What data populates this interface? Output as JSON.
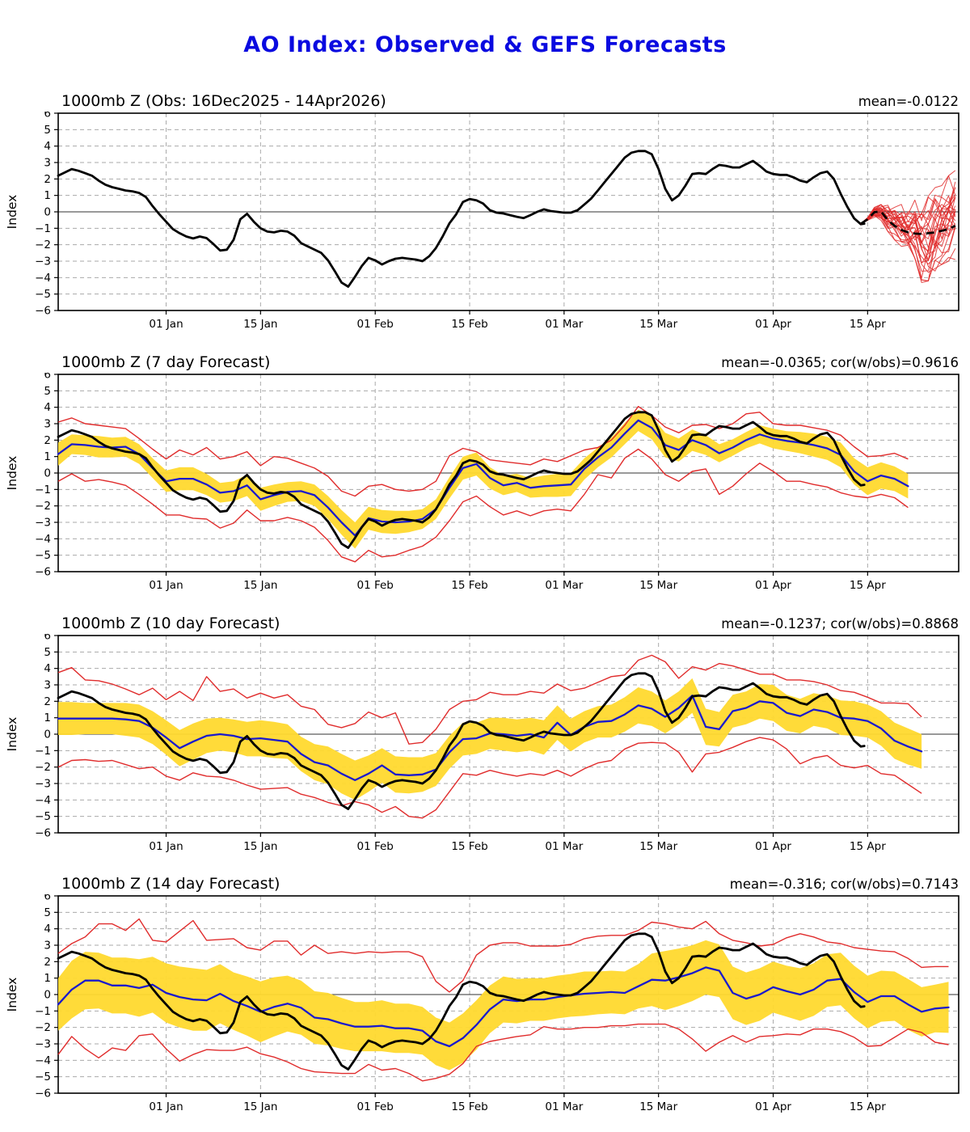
{
  "page": {
    "title": "AO Index: Observed & GEFS Forecasts"
  },
  "chart_data": {
    "type": "line",
    "title": "AO Index: Observed & GEFS Forecasts",
    "axis": {
      "ylabel": "Index",
      "y_range": [
        -6,
        6
      ],
      "x_range": [
        0,
        133.5
      ],
      "grid": "dashed horizontal at each integer, dashed vertical at date ticks, solid line at 0",
      "y_tick_labels": [
        "6",
        "5",
        "4",
        "3",
        "2",
        "1",
        "0",
        "−1",
        "−2",
        "−3",
        "−4",
        "−5",
        "−6"
      ],
      "x_ticks": [
        {
          "day": 16,
          "label": "01 Jan"
        },
        {
          "day": 30,
          "label": "15 Jan"
        },
        {
          "day": 47,
          "label": "01 Feb"
        },
        {
          "day": 61,
          "label": "15 Feb"
        },
        {
          "day": 75,
          "label": "01 Mar"
        },
        {
          "day": 89,
          "label": "15 Mar"
        },
        {
          "day": 106,
          "label": "01 Apr"
        },
        {
          "day": 120,
          "label": "15 Apr"
        }
      ],
      "x_day0": "16 Dec 2025 (day 0 of axis)"
    },
    "observed": {
      "description": "Black observed AO index curve, identical in all four panels, 16Dec2025-14Apr2026",
      "start_day": 0,
      "step": 1,
      "values": [
        2.2,
        2.4,
        2.6,
        2.5,
        2.35,
        2.2,
        1.9,
        1.65,
        1.5,
        1.4,
        1.3,
        1.25,
        1.15,
        0.9,
        0.35,
        -0.15,
        -0.6,
        -1.05,
        -1.3,
        -1.5,
        -1.62,
        -1.5,
        -1.6,
        -1.95,
        -2.35,
        -2.3,
        -1.7,
        -0.45,
        -0.12,
        -0.6,
        -1.0,
        -1.2,
        -1.25,
        -1.15,
        -1.2,
        -1.45,
        -1.9,
        -2.1,
        -2.3,
        -2.5,
        -2.95,
        -3.6,
        -4.3,
        -4.55,
        -3.95,
        -3.3,
        -2.8,
        -2.95,
        -3.2,
        -3.0,
        -2.85,
        -2.8,
        -2.85,
        -2.9,
        -3.0,
        -2.7,
        -2.2,
        -1.5,
        -0.7,
        -0.15,
        0.6,
        0.78,
        0.7,
        0.5,
        0.1,
        -0.05,
        -0.1,
        -0.2,
        -0.3,
        -0.38,
        -0.2,
        0.0,
        0.15,
        0.05,
        0.0,
        -0.05,
        -0.05,
        0.1,
        0.45,
        0.8,
        1.3,
        1.8,
        2.3,
        2.8,
        3.3,
        3.6,
        3.7,
        3.7,
        3.5,
        2.6,
        1.4,
        0.7,
        1.0,
        1.6,
        2.3,
        2.35,
        2.3,
        2.6,
        2.85,
        2.8,
        2.7,
        2.7,
        2.9,
        3.1,
        2.8,
        2.45,
        2.3,
        2.25,
        2.25,
        2.1,
        1.9,
        1.8,
        2.1,
        2.35,
        2.45,
        2.0,
        1.1,
        0.3,
        -0.4,
        -0.75
      ],
      "tail_day": 119.5,
      "tail_value": -0.72
    },
    "panels": [
      {
        "id": "observed",
        "title": "1000mb Z (Obs: 16Dec2025 - 14Apr2026)",
        "stats": "mean=-0.0122",
        "kind": "ensemble",
        "ensemble": {
          "note": "~26 red GEFS member traces fanning out after the observed curve ends; black dashed ensemble mean",
          "members": 26,
          "start_day": 119,
          "step": 1,
          "envelope_lo": [
            -0.78,
            -0.62,
            -0.4,
            -0.55,
            -1.2,
            -1.7,
            -2.1,
            -2.5,
            -2.9,
            -4.3,
            -4.2,
            -3.6,
            -3.2,
            -3.0,
            -2.9
          ],
          "envelope_hi": [
            -0.66,
            -0.28,
            0.3,
            0.45,
            0.5,
            0.55,
            0.6,
            0.7,
            0.9,
            1.1,
            1.4,
            1.5,
            1.6,
            2.2,
            2.6
          ],
          "mean": [
            -0.72,
            -0.45,
            -0.02,
            0.02,
            -0.5,
            -0.85,
            -1.1,
            -1.25,
            -1.32,
            -1.35,
            -1.3,
            -1.25,
            -1.15,
            -1.05,
            -0.85
          ]
        }
      },
      {
        "id": "forecast-7day",
        "title": "1000mb Z (7 day Forecast)",
        "stats": "mean=-0.0365; cor(w/obs)=0.9616",
        "kind": "forecast",
        "forecast": {
          "start_day": 0,
          "step": 2,
          "blue_mean": [
            1.15,
            1.75,
            1.7,
            1.6,
            1.55,
            1.6,
            1.15,
            0.3,
            -0.5,
            -0.35,
            -0.35,
            -0.7,
            -1.2,
            -1.1,
            -0.75,
            -1.6,
            -1.35,
            -1.15,
            -1.1,
            -1.35,
            -2.1,
            -3.0,
            -3.8,
            -2.75,
            -2.95,
            -3.0,
            -2.95,
            -2.8,
            -2.2,
            -0.9,
            0.3,
            0.55,
            -0.3,
            -0.75,
            -0.6,
            -0.9,
            -0.8,
            -0.75,
            -0.7,
            0.25,
            0.95,
            1.55,
            2.4,
            3.2,
            2.75,
            1.7,
            1.4,
            2.0,
            1.7,
            1.2,
            1.55,
            2.0,
            2.35,
            2.1,
            1.95,
            1.85,
            1.7,
            1.5,
            1.1,
            0.1,
            -0.5,
            -0.15,
            -0.35,
            -0.8
          ],
          "band_halfwidth": [
            0.7,
            0.6,
            0.6,
            0.65,
            0.6,
            0.6,
            0.6,
            0.6,
            0.65,
            0.7,
            0.7,
            0.65,
            0.6,
            0.6,
            0.65,
            0.7,
            0.65,
            0.6,
            0.6,
            0.65,
            0.7,
            0.75,
            0.8,
            0.7,
            0.7,
            0.7,
            0.65,
            0.6,
            0.6,
            0.65,
            0.7,
            0.7,
            0.65,
            0.6,
            0.55,
            0.6,
            0.65,
            0.7,
            0.7,
            0.65,
            0.6,
            0.6,
            0.65,
            0.65,
            0.7,
            0.75,
            0.7,
            0.65,
            0.6,
            0.55,
            0.5,
            0.5,
            0.55,
            0.6,
            0.6,
            0.65,
            0.7,
            0.7,
            0.75,
            0.8,
            0.85,
            0.8,
            0.75,
            0.75
          ],
          "red_max": [
            3.1,
            3.35,
            3.0,
            2.9,
            2.8,
            2.7,
            2.1,
            1.45,
            0.85,
            1.4,
            1.1,
            1.55,
            0.85,
            1.0,
            1.3,
            0.45,
            1.0,
            0.9,
            0.6,
            0.3,
            -0.2,
            -1.1,
            -1.4,
            -0.8,
            -0.7,
            -1.0,
            -1.1,
            -1.0,
            -0.5,
            1.05,
            1.5,
            1.3,
            0.8,
            0.7,
            0.6,
            0.5,
            0.85,
            0.7,
            1.05,
            1.4,
            1.55,
            2.0,
            2.9,
            4.05,
            3.5,
            2.8,
            2.45,
            2.9,
            2.95,
            2.7,
            3.0,
            3.6,
            3.7,
            3.0,
            2.9,
            2.9,
            2.75,
            2.6,
            2.3,
            1.6,
            1.0,
            1.05,
            1.2,
            0.85
          ],
          "red_min": [
            -0.5,
            -0.05,
            -0.5,
            -0.4,
            -0.55,
            -0.75,
            -1.3,
            -1.9,
            -2.55,
            -2.55,
            -2.75,
            -2.8,
            -3.35,
            -3.05,
            -2.25,
            -2.9,
            -2.9,
            -2.7,
            -2.9,
            -3.3,
            -4.1,
            -5.1,
            -5.4,
            -4.7,
            -5.1,
            -5.0,
            -4.7,
            -4.45,
            -3.9,
            -2.9,
            -1.75,
            -1.4,
            -2.05,
            -2.55,
            -2.3,
            -2.6,
            -2.3,
            -2.2,
            -2.3,
            -1.3,
            -0.1,
            -0.3,
            0.9,
            1.45,
            0.85,
            -0.1,
            -0.5,
            0.1,
            0.25,
            -1.3,
            -0.8,
            -0.05,
            0.6,
            0.1,
            -0.5,
            -0.5,
            -0.7,
            -0.85,
            -1.2,
            -1.4,
            -1.5,
            -1.3,
            -1.5,
            -2.1
          ]
        }
      },
      {
        "id": "forecast-10day",
        "title": "1000mb Z (10 day Forecast)",
        "stats": "mean=-0.1237; cor(w/obs)=0.8868",
        "kind": "forecast",
        "forecast": {
          "start_day": 0,
          "step": 2,
          "blue_mean": [
            0.95,
            0.95,
            0.95,
            0.95,
            0.95,
            0.9,
            0.8,
            0.4,
            -0.2,
            -0.85,
            -0.45,
            -0.1,
            0.0,
            -0.1,
            -0.3,
            -0.25,
            -0.35,
            -0.45,
            -1.2,
            -1.7,
            -1.9,
            -2.4,
            -2.8,
            -2.4,
            -1.9,
            -2.45,
            -2.5,
            -2.45,
            -2.15,
            -1.1,
            -0.3,
            -0.25,
            0.05,
            0.0,
            -0.1,
            0.0,
            -0.2,
            0.7,
            -0.05,
            0.45,
            0.75,
            0.8,
            1.2,
            1.75,
            1.55,
            1.05,
            1.6,
            2.35,
            0.45,
            0.3,
            1.4,
            1.6,
            2.0,
            1.9,
            1.3,
            1.1,
            1.5,
            1.35,
            1.0,
            0.95,
            0.8,
            0.35,
            -0.4,
            -0.75,
            -1.05
          ],
          "band_halfwidth": [
            1.0,
            1.0,
            0.95,
            0.95,
            0.95,
            1.0,
            1.0,
            1.0,
            1.05,
            1.1,
            1.1,
            1.05,
            1.0,
            1.0,
            1.05,
            1.1,
            1.1,
            1.05,
            1.05,
            1.1,
            1.15,
            1.2,
            1.2,
            1.1,
            1.05,
            1.1,
            1.1,
            1.05,
            1.0,
            1.0,
            1.0,
            0.95,
            0.95,
            1.0,
            1.0,
            1.0,
            1.05,
            1.05,
            1.0,
            0.95,
            0.95,
            1.0,
            1.05,
            1.1,
            1.05,
            1.0,
            1.0,
            1.05,
            1.1,
            1.05,
            1.0,
            1.0,
            1.05,
            1.1,
            1.1,
            1.05,
            1.0,
            1.0,
            1.05,
            1.05,
            1.0,
            1.05,
            1.1,
            1.1,
            1.05
          ],
          "red_max": [
            3.75,
            4.05,
            3.3,
            3.25,
            3.05,
            2.75,
            2.4,
            2.8,
            2.1,
            2.6,
            2.05,
            3.5,
            2.6,
            2.75,
            2.2,
            2.5,
            2.2,
            2.4,
            1.7,
            1.5,
            0.6,
            0.4,
            0.65,
            1.35,
            1.0,
            1.3,
            -0.6,
            -0.5,
            0.3,
            1.5,
            2.0,
            2.1,
            2.55,
            2.4,
            2.4,
            2.6,
            2.5,
            3.05,
            2.65,
            2.8,
            3.15,
            3.5,
            3.6,
            4.5,
            4.8,
            4.4,
            3.4,
            4.1,
            3.9,
            4.3,
            4.15,
            3.9,
            3.65,
            3.65,
            3.3,
            3.3,
            3.2,
            3.0,
            2.65,
            2.55,
            2.25,
            1.9,
            1.9,
            1.85,
            1.05
          ],
          "red_min": [
            -2.0,
            -1.6,
            -1.55,
            -1.65,
            -1.6,
            -1.85,
            -2.1,
            -2.0,
            -2.55,
            -2.8,
            -2.35,
            -2.55,
            -2.6,
            -2.8,
            -3.1,
            -3.35,
            -3.3,
            -3.25,
            -3.65,
            -3.85,
            -4.15,
            -4.35,
            -4.1,
            -4.3,
            -4.75,
            -4.4,
            -5.0,
            -5.1,
            -4.6,
            -3.5,
            -2.4,
            -2.5,
            -2.2,
            -2.4,
            -2.55,
            -2.4,
            -2.5,
            -2.2,
            -2.55,
            -2.1,
            -1.75,
            -1.6,
            -0.9,
            -0.55,
            -0.5,
            -0.55,
            -1.1,
            -2.3,
            -1.2,
            -1.1,
            -0.8,
            -0.45,
            -0.2,
            -0.35,
            -0.9,
            -1.8,
            -1.45,
            -1.3,
            -1.9,
            -2.05,
            -1.9,
            -2.4,
            -2.5,
            -3.05,
            -3.6
          ]
        }
      },
      {
        "id": "forecast-14day",
        "title": "1000mb Z (14 day Forecast)",
        "stats": "mean=-0.316; cor(w/obs)=0.7143",
        "kind": "forecast",
        "forecast": {
          "start_day": 0,
          "step": 2,
          "blue_mean": [
            -0.6,
            0.3,
            0.85,
            0.85,
            0.55,
            0.55,
            0.4,
            0.6,
            0.1,
            -0.15,
            -0.3,
            -0.35,
            0.05,
            -0.4,
            -0.7,
            -1.05,
            -0.75,
            -0.55,
            -0.8,
            -1.4,
            -1.5,
            -1.75,
            -1.95,
            -1.95,
            -1.9,
            -2.05,
            -2.05,
            -2.2,
            -2.85,
            -3.15,
            -2.65,
            -1.85,
            -0.9,
            -0.3,
            -0.4,
            -0.3,
            -0.3,
            -0.15,
            -0.05,
            0.05,
            0.1,
            0.15,
            0.1,
            0.5,
            0.9,
            0.85,
            1.05,
            1.3,
            1.65,
            1.45,
            0.1,
            -0.25,
            0.0,
            0.45,
            0.2,
            0.0,
            0.3,
            0.85,
            0.95,
            0.15,
            -0.45,
            -0.1,
            -0.1,
            -0.6,
            -1.05,
            -0.85,
            -0.78
          ],
          "band_halfwidth": [
            1.6,
            1.75,
            1.75,
            1.7,
            1.7,
            1.7,
            1.75,
            1.7,
            1.8,
            1.85,
            1.9,
            1.85,
            1.8,
            1.75,
            1.8,
            1.85,
            1.8,
            1.7,
            1.65,
            1.6,
            1.6,
            1.55,
            1.5,
            1.5,
            1.55,
            1.5,
            1.5,
            1.45,
            1.45,
            1.45,
            1.5,
            1.5,
            1.45,
            1.4,
            1.35,
            1.3,
            1.3,
            1.3,
            1.3,
            1.35,
            1.3,
            1.3,
            1.3,
            1.35,
            1.6,
            1.8,
            1.75,
            1.7,
            1.65,
            1.6,
            1.6,
            1.6,
            1.6,
            1.55,
            1.55,
            1.6,
            1.6,
            1.6,
            1.6,
            1.6,
            1.6,
            1.55,
            1.5,
            1.55,
            1.5,
            1.45,
            1.55
          ],
          "red_max": [
            2.5,
            3.1,
            3.5,
            4.3,
            4.3,
            3.9,
            4.6,
            3.3,
            3.2,
            3.85,
            4.5,
            3.3,
            3.35,
            3.4,
            2.85,
            2.7,
            3.25,
            3.25,
            2.4,
            3.0,
            2.5,
            2.6,
            2.5,
            2.6,
            2.55,
            2.6,
            2.6,
            2.3,
            0.8,
            0.15,
            0.85,
            2.4,
            3.0,
            3.15,
            3.15,
            2.95,
            2.95,
            2.95,
            3.05,
            3.4,
            3.55,
            3.6,
            3.6,
            3.9,
            4.4,
            4.3,
            4.1,
            4.0,
            4.45,
            3.7,
            3.3,
            3.15,
            2.95,
            3.05,
            3.45,
            3.7,
            3.5,
            3.2,
            3.1,
            2.85,
            2.75,
            2.65,
            2.6,
            2.2,
            1.65,
            1.7,
            1.7
          ],
          "red_min": [
            -3.65,
            -2.55,
            -3.3,
            -3.85,
            -3.25,
            -3.4,
            -2.5,
            -2.4,
            -3.3,
            -4.05,
            -3.65,
            -3.35,
            -3.4,
            -3.4,
            -3.2,
            -3.6,
            -3.8,
            -4.1,
            -4.5,
            -4.7,
            -4.75,
            -4.8,
            -4.8,
            -4.25,
            -4.6,
            -4.5,
            -4.8,
            -5.25,
            -5.1,
            -4.85,
            -4.2,
            -3.15,
            -2.85,
            -2.7,
            -2.55,
            -2.45,
            -1.95,
            -2.1,
            -2.1,
            -2.0,
            -2.0,
            -1.9,
            -1.9,
            -1.8,
            -1.8,
            -1.8,
            -2.1,
            -2.7,
            -3.45,
            -2.9,
            -2.5,
            -2.9,
            -2.55,
            -2.5,
            -2.4,
            -2.45,
            -2.1,
            -2.1,
            -2.25,
            -2.6,
            -3.15,
            -3.1,
            -2.6,
            -2.1,
            -2.3,
            -2.9,
            -3.05
          ]
        }
      }
    ],
    "colors": {
      "main_title": "#0a0ae0",
      "observed_line": "#000000",
      "forecast_mean_line": "#1a1acd",
      "spread_band": "#ffd92e",
      "envelope_lines": "#e02c2c",
      "ensemble_members": "#e02c2c",
      "ensemble_mean_dashed": "#000000",
      "grid": "#aaaaaa"
    }
  }
}
